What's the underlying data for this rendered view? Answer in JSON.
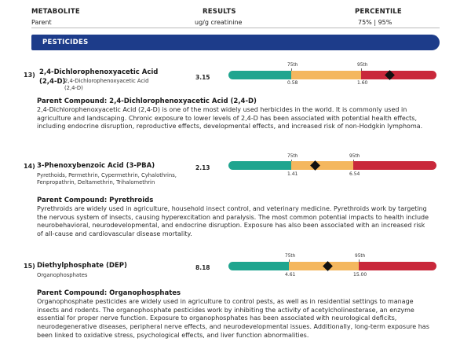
{
  "header": {
    "metabolite_label": "METABOLITE",
    "results_label": "RESULTS",
    "percentile_label": "PERCENTILE",
    "parent_label": "Parent",
    "units": "ug/g creatinine",
    "percentile_values": "75% | 95%"
  },
  "section": {
    "title": "PESTICIDES"
  },
  "markers": [
    {
      "number": "13)",
      "name_line1": "2,4-Dichlorophenoxyacetic Acid",
      "name_line2": "(2,4-D)",
      "synonyms": "2,4-Dichlorophenoxyacetic Acid (2,4-D)",
      "result": "3.15",
      "p75_label": "75th",
      "p95_label": "95th",
      "p75_value": "0.58",
      "p95_value": "1.60",
      "level_fraction": 0.775,
      "parent_title": "Parent Compound: 2,4-Dichlorophenoxyacetic Acid (2,4-D)",
      "description": "2,4-Dichlorophenoxyacetic Acid (2,4-D) is one of the most widely used herbicides in the world. It is commonly used in agriculture and landscaping. Chronic exposure to lower levels of 2,4-D has been associated with potential health effects, including endocrine disruption, reproductive effects, developmental effects, and increased risk of non-Hodgkin lymphoma."
    },
    {
      "number": "14)",
      "name_line1": "3-Phenoxybenzoic Acid (3-PBA)",
      "synonyms": "Pyrethoids, Permethrin, Cypermethrin, Cyhalothrins, Fenpropathrin, Deltamethrin, Trihalomethrin",
      "result": "2.13",
      "p75_label": "75th",
      "p95_label": "95th",
      "p75_value": "1.41",
      "p95_value": "6.54",
      "level_fraction": 0.414,
      "parent_title": "Parent Compound: Pyrethroids",
      "description": "Pyrethroids are widely used in agriculture, household insect control, and veterinary medicine. Pyrethroids work by targeting the nervous system of insects, causing hyperexcitation and paralysis. The most common potential impacts to health include neurobehavioral, neurodevelopmental, and endocrine disruption. Exposure has also been associated with an increased risk of all-cause and cardiovascular disease mortality."
    },
    {
      "number": "15)",
      "name_line1": "Diethylphosphate (DEP)",
      "synonyms": "Organophosphates",
      "result": "8.18",
      "p75_label": "75th",
      "p95_label": "95th",
      "p75_value": "4.61",
      "p95_value": "15.00",
      "level_fraction": 0.476,
      "parent_title": "Parent Compound: Organophosphates",
      "description": "Organophosphate pesticides are widely used in agriculture to control pests, as well as in residential settings to manage insects and rodents. The organophosphate pesticides work by inhibiting the activity of acetylcholinesterase, an enzyme essential for proper nerve function. Exposure to organophosphates has been associated with neurological deficits, neurodegenerative diseases, peripheral nerve effects, and neurodevelopmental issues. Additionally, long-term exposure has been linked to oxidative stress, psychological effects, and liver function abnormalities."
    }
  ]
}
